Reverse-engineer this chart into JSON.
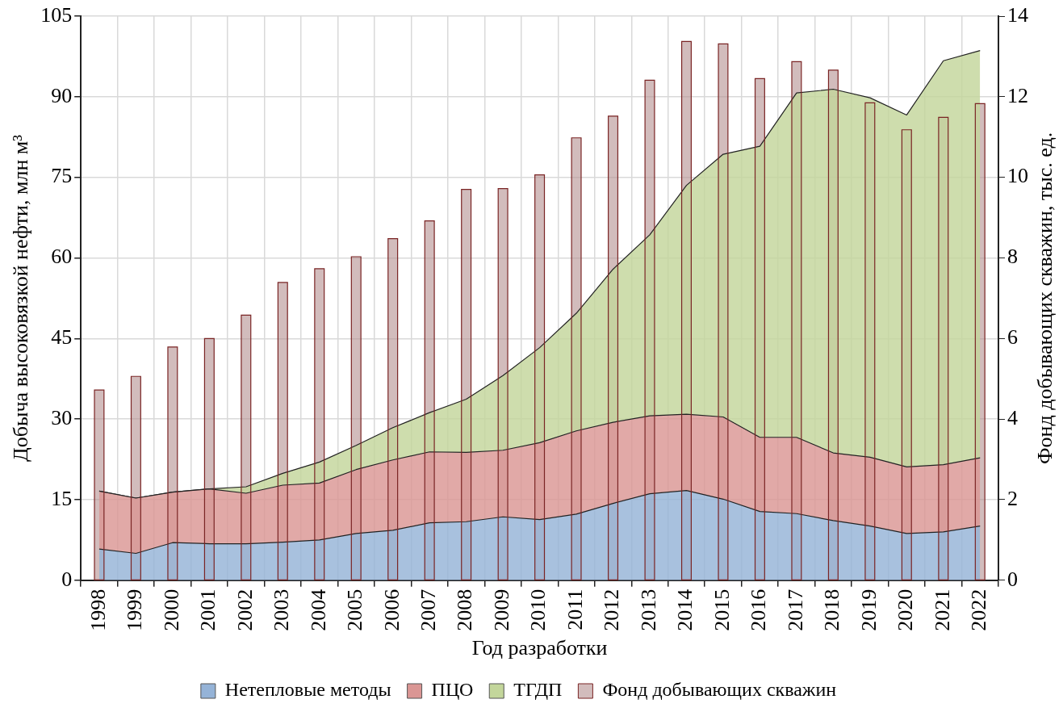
{
  "chart_data": {
    "type": "area",
    "xlabel": "Год разработки",
    "ylabel": "Добыча высоковязкой нефти, млн м³",
    "y2label": "Фонд добывающих скважин, тыс. ед.",
    "categories": [
      "1998",
      "1999",
      "2000",
      "2001",
      "2002",
      "2003",
      "2004",
      "2005",
      "2006",
      "2007",
      "2008",
      "2009",
      "2010",
      "2011",
      "2012",
      "2013",
      "2014",
      "2015",
      "2016",
      "2017",
      "2018",
      "2019",
      "2020",
      "2021",
      "2022"
    ],
    "stacked": true,
    "grid": true,
    "legend": "bottom",
    "ylim": [
      0,
      105
    ],
    "yticks": [
      0,
      15,
      30,
      45,
      60,
      75,
      90,
      105
    ],
    "y2lim": [
      0,
      14
    ],
    "y2ticks": [
      0,
      2,
      4,
      6,
      8,
      10,
      12,
      14
    ],
    "series": [
      {
        "name": "Нетепловые методы",
        "color": "#95b3d7",
        "values": [
          5.8,
          5.0,
          7.0,
          6.8,
          6.8,
          7.1,
          7.5,
          8.7,
          9.3,
          10.7,
          10.9,
          11.8,
          11.3,
          12.3,
          14.3,
          16.1,
          16.7,
          15.1,
          12.8,
          12.4,
          11.1,
          10.1,
          8.7,
          9.0,
          10.1
        ]
      },
      {
        "name": "ПЦО",
        "color": "#da9694",
        "values": [
          10.8,
          10.3,
          9.4,
          10.2,
          9.4,
          10.6,
          10.6,
          11.9,
          13.1,
          13.2,
          12.9,
          12.4,
          14.3,
          15.5,
          15.1,
          14.5,
          14.2,
          15.3,
          13.8,
          14.2,
          12.6,
          12.8,
          12.4,
          12.5,
          12.7
        ]
      },
      {
        "name": "ТГДП",
        "color": "#c3d69b",
        "values": [
          0,
          0,
          0,
          0,
          1.2,
          2.2,
          3.9,
          4.5,
          6.0,
          7.3,
          9.9,
          13.9,
          17.7,
          21.9,
          28.5,
          33.7,
          42.6,
          48.9,
          54.2,
          64.1,
          67.7,
          66.9,
          65.5,
          75.2,
          75.8
        ]
      },
      {
        "name": "Фонд добывающих скважин",
        "type": "bar",
        "axis": "y2",
        "color": "#b48f8f",
        "values": [
          4.72,
          5.06,
          5.79,
          6.0,
          6.58,
          7.39,
          7.73,
          8.03,
          8.48,
          8.92,
          9.7,
          9.72,
          10.06,
          10.98,
          11.52,
          12.41,
          13.37,
          13.31,
          12.45,
          12.87,
          12.66,
          11.85,
          11.18,
          11.49,
          11.83
        ]
      }
    ]
  }
}
